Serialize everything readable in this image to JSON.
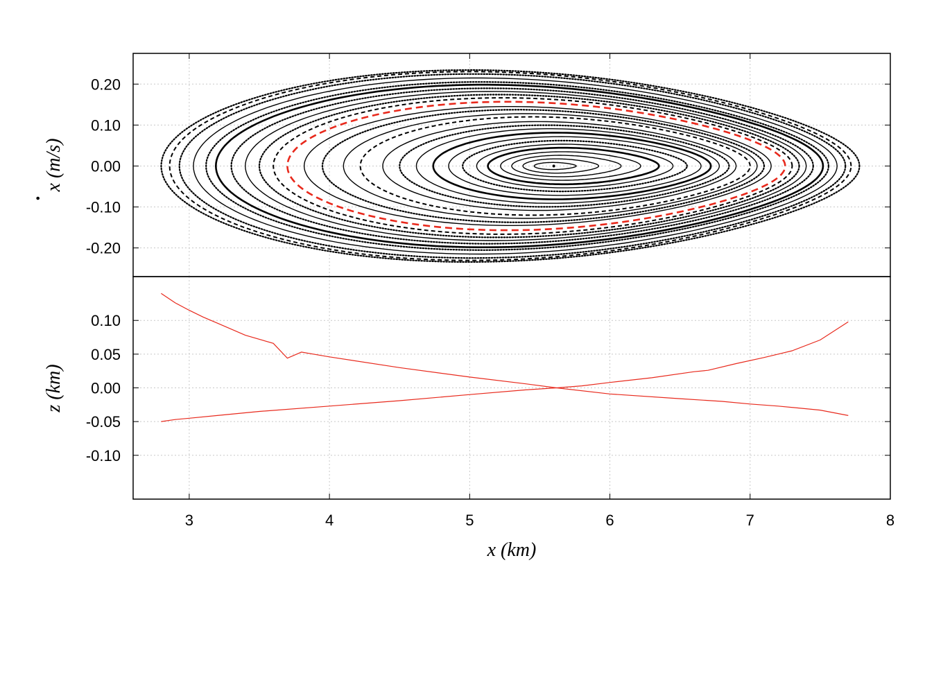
{
  "chart_data": [
    {
      "type": "scatter",
      "panel": "top",
      "title": "",
      "xlabel": "",
      "ylabel": "x (m/s)",
      "ylabel_accent": "·",
      "xlim": [
        2.6,
        8.0
      ],
      "ylim": [
        -0.27,
        0.275
      ],
      "grid": true,
      "yticks": [
        0.2,
        0.1,
        0.0,
        -0.1,
        -0.2
      ],
      "ytick_labels": [
        "0.20",
        "0.10",
        "0.00",
        "-0.10",
        "-0.20"
      ],
      "xticks": [
        3,
        4,
        5,
        6,
        7,
        8
      ],
      "center": [
        5.6,
        0.0
      ],
      "curve_color": "#000000",
      "highlight_color": "#e8291c",
      "curves": [
        {
          "x_min": 2.8,
          "x_max": 7.78,
          "vmax": 0.242,
          "style": "dotted"
        },
        {
          "x_min": 2.86,
          "x_max": 7.72,
          "vmax": 0.238,
          "style": "dashed"
        },
        {
          "x_min": 2.93,
          "x_max": 7.68,
          "vmax": 0.232,
          "style": "dotted"
        },
        {
          "x_min": 3.03,
          "x_max": 7.62,
          "vmax": 0.222,
          "style": "solid"
        },
        {
          "x_min": 3.12,
          "x_max": 7.56,
          "vmax": 0.212,
          "style": "dotted"
        },
        {
          "x_min": 3.19,
          "x_max": 7.52,
          "vmax": 0.205,
          "style": "solid-bold"
        },
        {
          "x_min": 3.3,
          "x_max": 7.45,
          "vmax": 0.196,
          "style": "dotted"
        },
        {
          "x_min": 3.4,
          "x_max": 7.4,
          "vmax": 0.188,
          "style": "solid"
        },
        {
          "x_min": 3.5,
          "x_max": 7.35,
          "vmax": 0.18,
          "style": "dotted"
        },
        {
          "x_min": 3.6,
          "x_max": 7.3,
          "vmax": 0.172,
          "style": "dashed"
        },
        {
          "x_min": 3.82,
          "x_max": 7.15,
          "vmax": 0.15,
          "style": "solid"
        },
        {
          "x_min": 3.95,
          "x_max": 7.1,
          "vmax": 0.142,
          "style": "dotted"
        },
        {
          "x_min": 4.1,
          "x_max": 7.05,
          "vmax": 0.132,
          "style": "solid"
        },
        {
          "x_min": 4.22,
          "x_max": 7.0,
          "vmax": 0.124,
          "style": "dashed"
        },
        {
          "x_min": 4.38,
          "x_max": 6.9,
          "vmax": 0.112,
          "style": "solid"
        },
        {
          "x_min": 4.5,
          "x_max": 6.85,
          "vmax": 0.103,
          "style": "dotted"
        },
        {
          "x_min": 4.62,
          "x_max": 6.78,
          "vmax": 0.094,
          "style": "solid"
        },
        {
          "x_min": 4.74,
          "x_max": 6.72,
          "vmax": 0.084,
          "style": "solid-bold"
        },
        {
          "x_min": 4.85,
          "x_max": 6.65,
          "vmax": 0.074,
          "style": "solid"
        },
        {
          "x_min": 4.95,
          "x_max": 6.55,
          "vmax": 0.064,
          "style": "dotted"
        },
        {
          "x_min": 5.05,
          "x_max": 6.45,
          "vmax": 0.055,
          "style": "solid"
        },
        {
          "x_min": 5.13,
          "x_max": 6.35,
          "vmax": 0.046,
          "style": "solid-bold"
        },
        {
          "x_min": 5.22,
          "x_max": 6.22,
          "vmax": 0.036,
          "style": "solid"
        },
        {
          "x_min": 5.3,
          "x_max": 6.08,
          "vmax": 0.027,
          "style": "solid"
        },
        {
          "x_min": 5.38,
          "x_max": 5.92,
          "vmax": 0.018,
          "style": "solid"
        },
        {
          "x_min": 5.46,
          "x_max": 5.76,
          "vmax": 0.009,
          "style": "solid"
        }
      ],
      "highlight_curve": {
        "x_min": 3.7,
        "x_max": 7.25,
        "vmax": 0.162,
        "style": "dashed"
      }
    },
    {
      "type": "line",
      "panel": "bottom",
      "title": "",
      "xlabel": "x (km)",
      "ylabel": "z (km)",
      "xlim": [
        2.6,
        8.0
      ],
      "ylim": [
        -0.165,
        0.165
      ],
      "grid": true,
      "xticks": [
        3,
        4,
        5,
        6,
        7,
        8
      ],
      "xtick_labels": [
        "3",
        "4",
        "5",
        "6",
        "7",
        "8"
      ],
      "yticks": [
        0.1,
        0.05,
        0.0,
        -0.05,
        -0.1
      ],
      "ytick_labels": [
        "0.10",
        "0.05",
        "0.00",
        "-0.05",
        "-0.10"
      ],
      "series_color": "#e8291c",
      "series": [
        {
          "x": [
            2.8,
            2.9,
            3.0,
            3.1,
            3.2,
            3.4,
            3.6,
            3.7,
            3.8,
            4.0,
            4.5,
            5.0,
            5.4,
            5.62,
            6.0,
            6.5,
            6.8,
            7.0,
            7.2,
            7.5,
            7.7
          ],
          "y": [
            0.14,
            0.126,
            0.115,
            0.105,
            0.096,
            0.078,
            0.066,
            0.044,
            0.053,
            0.046,
            0.03,
            0.016,
            0.006,
            0.0,
            -0.009,
            -0.016,
            -0.02,
            -0.024,
            -0.027,
            -0.033,
            -0.041
          ]
        },
        {
          "x": [
            2.8,
            2.9,
            3.0,
            3.2,
            3.5,
            4.0,
            4.5,
            5.0,
            5.4,
            5.62,
            5.8,
            6.0,
            6.3,
            6.6,
            6.7,
            6.9,
            7.1,
            7.3,
            7.5,
            7.7
          ],
          "y": [
            -0.05,
            -0.047,
            -0.045,
            -0.041,
            -0.035,
            -0.027,
            -0.019,
            -0.01,
            -0.003,
            0.0,
            0.003,
            0.008,
            0.015,
            0.024,
            0.026,
            0.036,
            0.045,
            0.055,
            0.071,
            0.098
          ]
        }
      ]
    }
  ]
}
